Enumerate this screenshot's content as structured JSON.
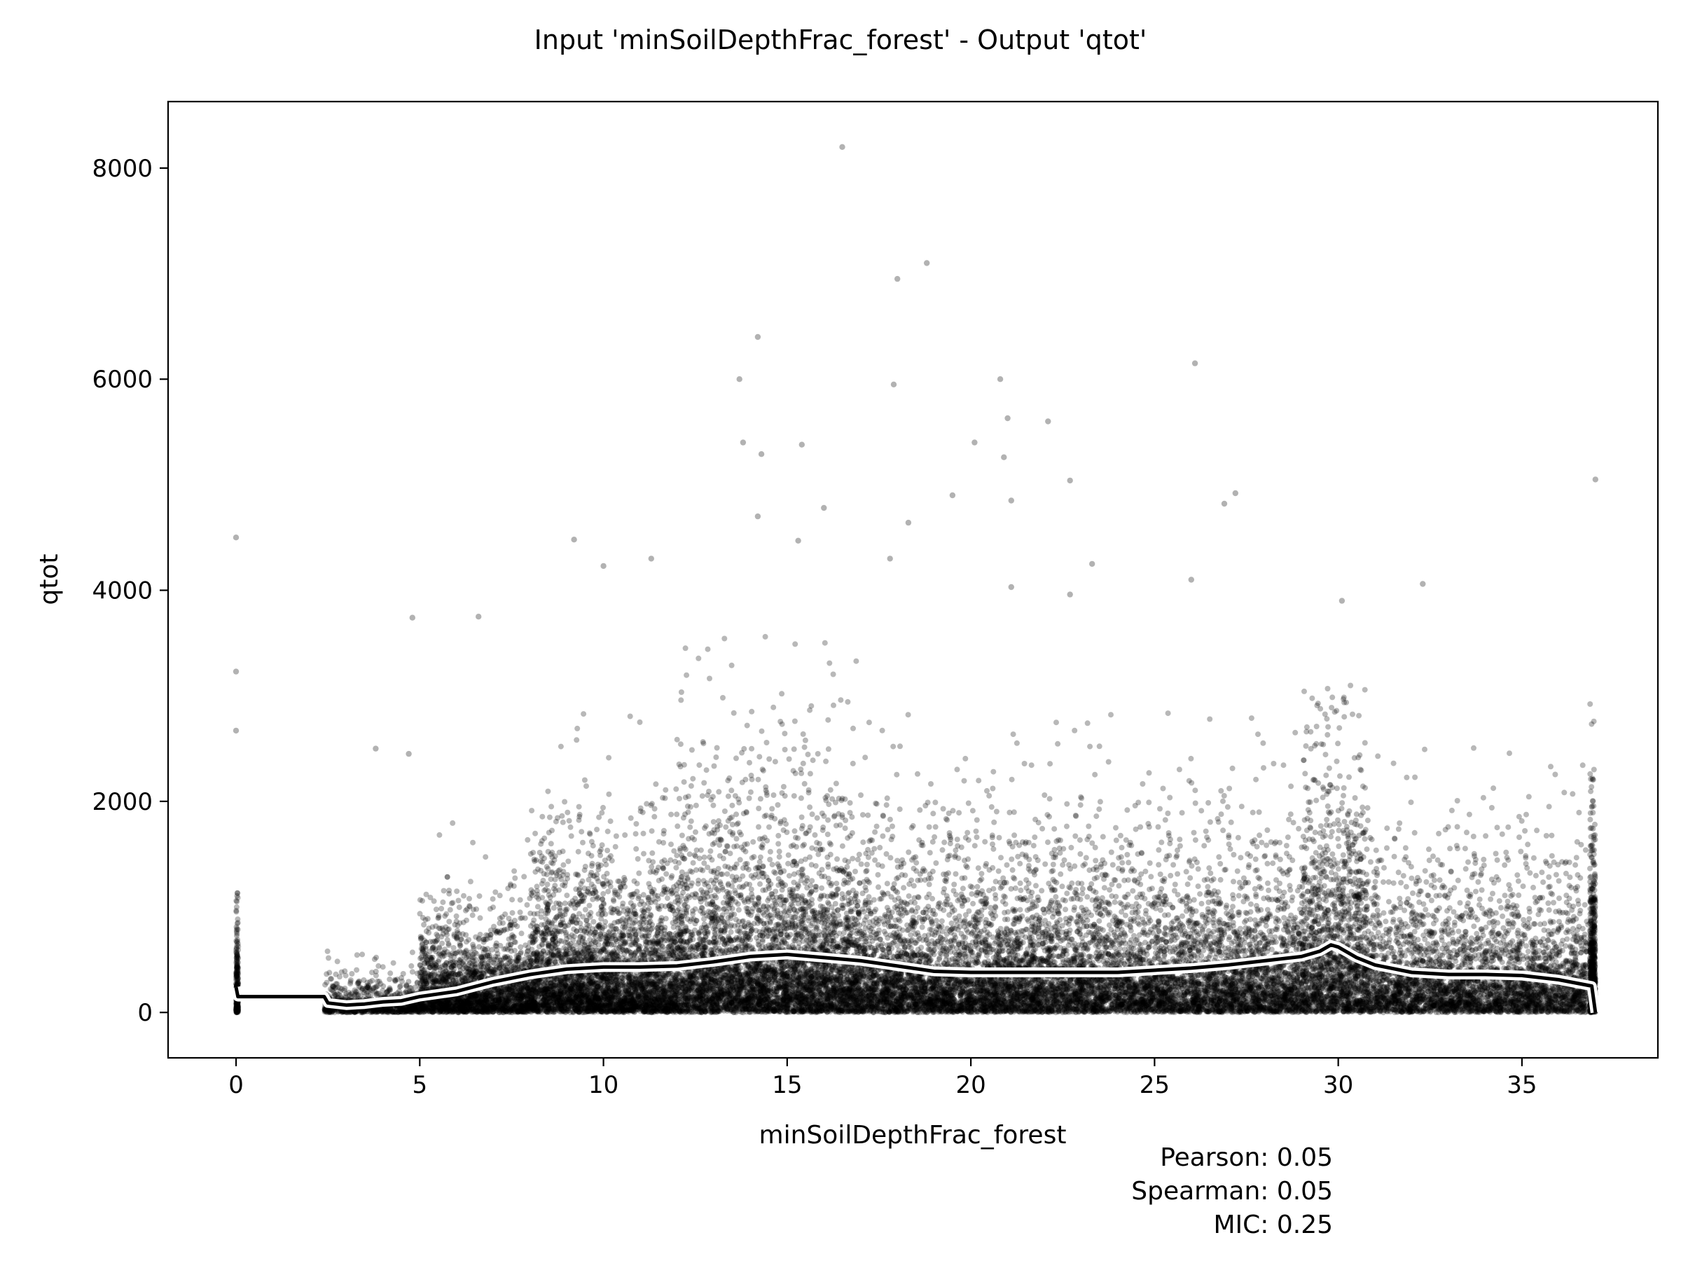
{
  "chart_data": {
    "type": "scatter",
    "title": "Input 'minSoilDepthFrac_forest' - Output 'qtot'",
    "xlabel": "minSoilDepthFrac_forest",
    "ylabel": "qtot",
    "xlim": [
      -1.85,
      38.7
    ],
    "ylim": [
      -430,
      8630
    ],
    "xticks": [
      0,
      5,
      10,
      15,
      20,
      25,
      30,
      35
    ],
    "yticks": [
      0,
      2000,
      4000,
      6000,
      8000
    ],
    "grid": false,
    "legend": "none",
    "point_color": "#000000",
    "trend_color": "#000000",
    "trend_halo_color": "#ffffff",
    "trend_line": {
      "x": [
        0,
        0.05,
        2.4,
        2.5,
        3.0,
        3.5,
        4.0,
        4.5,
        5.0,
        6.0,
        7.0,
        8.0,
        9.0,
        10.0,
        11.0,
        12.0,
        13.0,
        14.0,
        15.0,
        16.0,
        17.0,
        18.0,
        19.0,
        20.0,
        22.0,
        24.0,
        26.0,
        27.0,
        28.0,
        29.0,
        29.5,
        29.8,
        30.0,
        30.5,
        31.0,
        32.0,
        33.0,
        34.0,
        35.0,
        36.0,
        36.9,
        37.0
      ],
      "y": [
        240,
        150,
        150,
        90,
        70,
        80,
        100,
        110,
        150,
        200,
        290,
        360,
        410,
        430,
        430,
        440,
        480,
        530,
        550,
        520,
        490,
        440,
        390,
        380,
        380,
        380,
        420,
        450,
        490,
        530,
        580,
        640,
        620,
        520,
        450,
        380,
        360,
        360,
        350,
        310,
        250,
        0
      ]
    },
    "outliers": [
      {
        "x": 16.5,
        "y": 8200
      },
      {
        "x": 18.8,
        "y": 7100
      },
      {
        "x": 18.0,
        "y": 6950
      },
      {
        "x": 14.2,
        "y": 6400
      },
      {
        "x": 26.1,
        "y": 6150
      },
      {
        "x": 20.8,
        "y": 6000
      },
      {
        "x": 13.7,
        "y": 6000
      },
      {
        "x": 17.9,
        "y": 5950
      },
      {
        "x": 21.0,
        "y": 5630
      },
      {
        "x": 22.1,
        "y": 5600
      },
      {
        "x": 13.8,
        "y": 5400
      },
      {
        "x": 20.1,
        "y": 5400
      },
      {
        "x": 15.4,
        "y": 5380
      },
      {
        "x": 14.3,
        "y": 5290
      },
      {
        "x": 20.9,
        "y": 5260
      },
      {
        "x": 37.0,
        "y": 5050
      },
      {
        "x": 22.7,
        "y": 5040
      },
      {
        "x": 19.5,
        "y": 4900
      },
      {
        "x": 27.2,
        "y": 4920
      },
      {
        "x": 21.1,
        "y": 4850
      },
      {
        "x": 26.9,
        "y": 4820
      },
      {
        "x": 16.0,
        "y": 4780
      },
      {
        "x": 14.2,
        "y": 4700
      },
      {
        "x": 18.3,
        "y": 4640
      },
      {
        "x": 0.0,
        "y": 4500
      },
      {
        "x": 9.2,
        "y": 4480
      },
      {
        "x": 15.3,
        "y": 4470
      },
      {
        "x": 11.3,
        "y": 4300
      },
      {
        "x": 17.8,
        "y": 4300
      },
      {
        "x": 10.0,
        "y": 4230
      },
      {
        "x": 23.3,
        "y": 4250
      },
      {
        "x": 26.0,
        "y": 4100
      },
      {
        "x": 32.3,
        "y": 4060
      },
      {
        "x": 21.1,
        "y": 4030
      },
      {
        "x": 22.7,
        "y": 3960
      },
      {
        "x": 30.1,
        "y": 3900
      },
      {
        "x": 4.8,
        "y": 3740
      },
      {
        "x": 6.6,
        "y": 3750
      },
      {
        "x": 0.0,
        "y": 3230
      },
      {
        "x": 0.0,
        "y": 2670
      },
      {
        "x": 3.8,
        "y": 2500
      },
      {
        "x": 4.7,
        "y": 2450
      }
    ],
    "clouds": [
      {
        "x": [
          0.0,
          0.06
        ],
        "base": 0,
        "scale": 260,
        "max": 1900,
        "n": 280
      },
      {
        "x": [
          2.4,
          5.0
        ],
        "base": 0,
        "scale": 90,
        "max": 1400,
        "n": 900
      },
      {
        "x": [
          5.0,
          8.0
        ],
        "base": 0,
        "scale": 260,
        "max": 2600,
        "n": 2200
      },
      {
        "x": [
          8.0,
          12.0
        ],
        "base": 0,
        "scale": 420,
        "max": 3300,
        "n": 3600
      },
      {
        "x": [
          12.0,
          17.0
        ],
        "base": 0,
        "scale": 540,
        "max": 3700,
        "n": 4400
      },
      {
        "x": [
          17.0,
          22.0
        ],
        "base": 0,
        "scale": 430,
        "max": 3200,
        "n": 3600
      },
      {
        "x": [
          22.0,
          29.0
        ],
        "base": 0,
        "scale": 430,
        "max": 3000,
        "n": 4600
      },
      {
        "x": [
          29.0,
          30.8
        ],
        "base": 0,
        "scale": 700,
        "max": 3100,
        "n": 1600
      },
      {
        "x": [
          30.8,
          36.8
        ],
        "base": 0,
        "scale": 380,
        "max": 2800,
        "n": 3400
      },
      {
        "x": [
          36.85,
          37.0
        ],
        "base": 0,
        "scale": 520,
        "max": 3700,
        "n": 700
      }
    ]
  },
  "stats": {
    "pearson": "Pearson: 0.05",
    "spearman": "Spearman: 0.05",
    "mic": "MIC: 0.25"
  }
}
